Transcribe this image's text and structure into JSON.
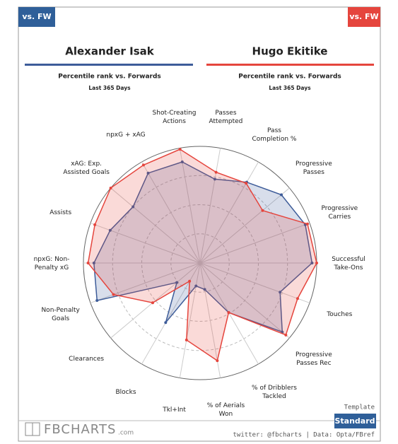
{
  "chart_data": {
    "type": "radar",
    "categories": [
      [
        "Shot-Creating",
        "Actions"
      ],
      [
        "Passes",
        "Attempted"
      ],
      [
        "Pass",
        "Completion %"
      ],
      [
        "Progressive",
        "Passes"
      ],
      [
        "Progressive",
        "Carries"
      ],
      [
        "Successful",
        "Take-Ons"
      ],
      [
        "Touches"
      ],
      [
        "Progressive",
        "Passes Rec"
      ],
      [
        "% of Dribblers",
        "Tackled"
      ],
      [
        "% of Aerials",
        "Won"
      ],
      [
        "Tkl+Int"
      ],
      [
        "Blocks"
      ],
      [
        "Clearances"
      ],
      [
        "Non-Penalty",
        "Goals"
      ],
      [
        "npxG: Non-",
        "Penalty xG"
      ],
      [
        "Assists"
      ],
      [
        "xAG: Exp.",
        "Assisted Goals"
      ],
      [
        "npxG + xAG"
      ]
    ],
    "series": [
      {
        "name": "Alexander Isak",
        "badge": "vs. FW",
        "subtitle": "Percentile rank vs. Forwards",
        "period": "Last 365 Days",
        "color": "#3d5c99",
        "values": [
          88,
          73,
          80,
          91,
          96,
          96,
          73,
          92,
          49,
          23,
          20,
          59,
          26,
          94,
          91,
          82,
          75,
          89
        ]
      },
      {
        "name": "Hugo Ekitike",
        "badge": "vs. FW",
        "subtitle": "Percentile rank vs. Forwards",
        "period": "Last 365 Days",
        "color": "#e5453d",
        "values": [
          99,
          79,
          79,
          70,
          98,
          100,
          89,
          96,
          49,
          85,
          67,
          18,
          53,
          79,
          96,
          96,
          100,
          97
        ]
      }
    ],
    "rlim": [
      0,
      100
    ],
    "rticks": [
      25,
      50,
      75,
      100
    ]
  },
  "footer": {
    "logo": "FBCHARTS",
    "logo_suffix": ".com",
    "template_label": "Template",
    "template": "Standard",
    "credit": "twitter: @fbcharts | Data: Opta/FBref"
  }
}
